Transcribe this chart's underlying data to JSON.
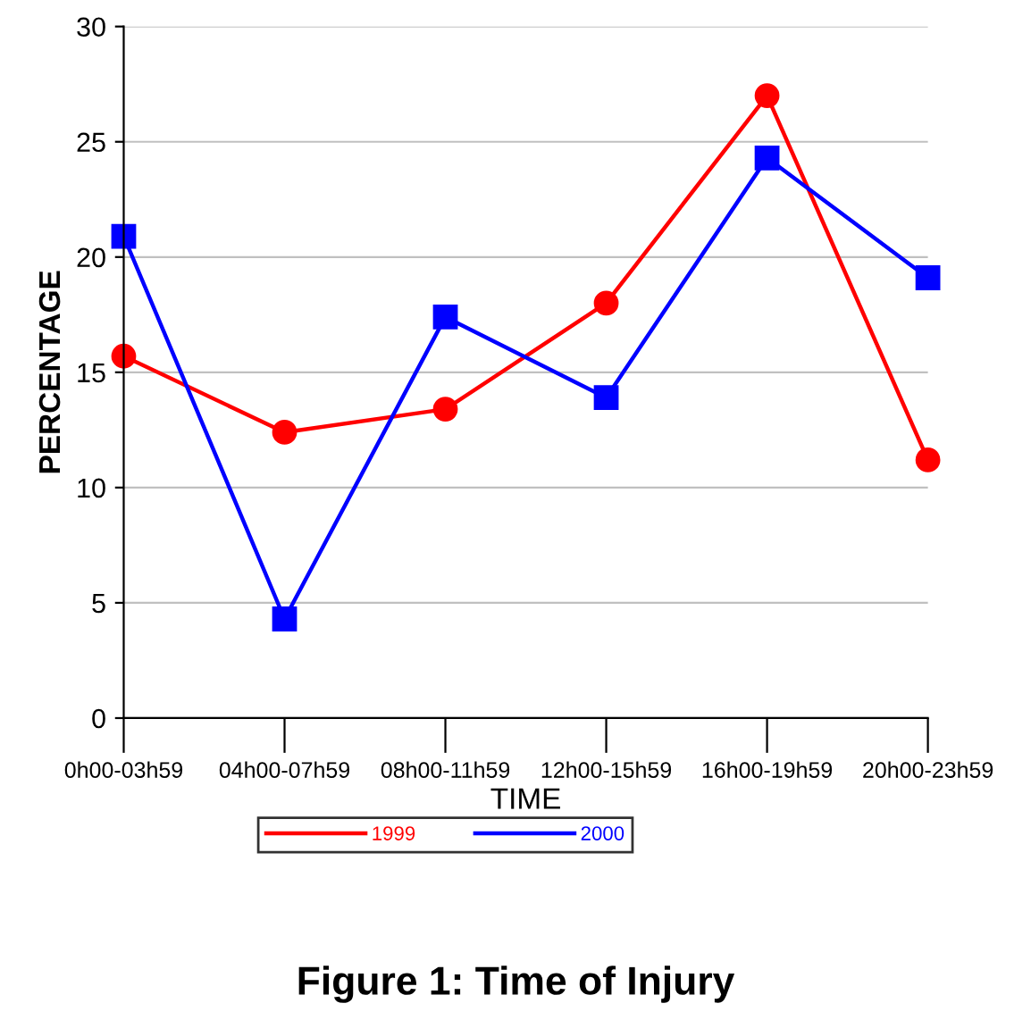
{
  "chart_data": {
    "type": "line",
    "title": "Figure 1: Time of Injury",
    "xlabel": "TIME",
    "ylabel": "PERCENTAGE",
    "categories": [
      "0h00-03h59",
      "04h00-07h59",
      "08h00-11h59",
      "12h00-15h59",
      "16h00-19h59",
      "20h00-23h59"
    ],
    "series": [
      {
        "name": "1999",
        "color": "#ff0000",
        "marker": "circle",
        "values": [
          15.7,
          12.4,
          13.4,
          18.0,
          27.0,
          11.2
        ]
      },
      {
        "name": "2000",
        "color": "#0000ff",
        "marker": "square",
        "values": [
          20.9,
          4.3,
          17.4,
          13.9,
          24.3,
          19.1
        ]
      }
    ],
    "ylim": [
      0,
      30
    ],
    "yticks": [
      0,
      5,
      10,
      15,
      20,
      25,
      30
    ],
    "grid": "y",
    "legend": "bottom",
    "line_style": "solid"
  }
}
